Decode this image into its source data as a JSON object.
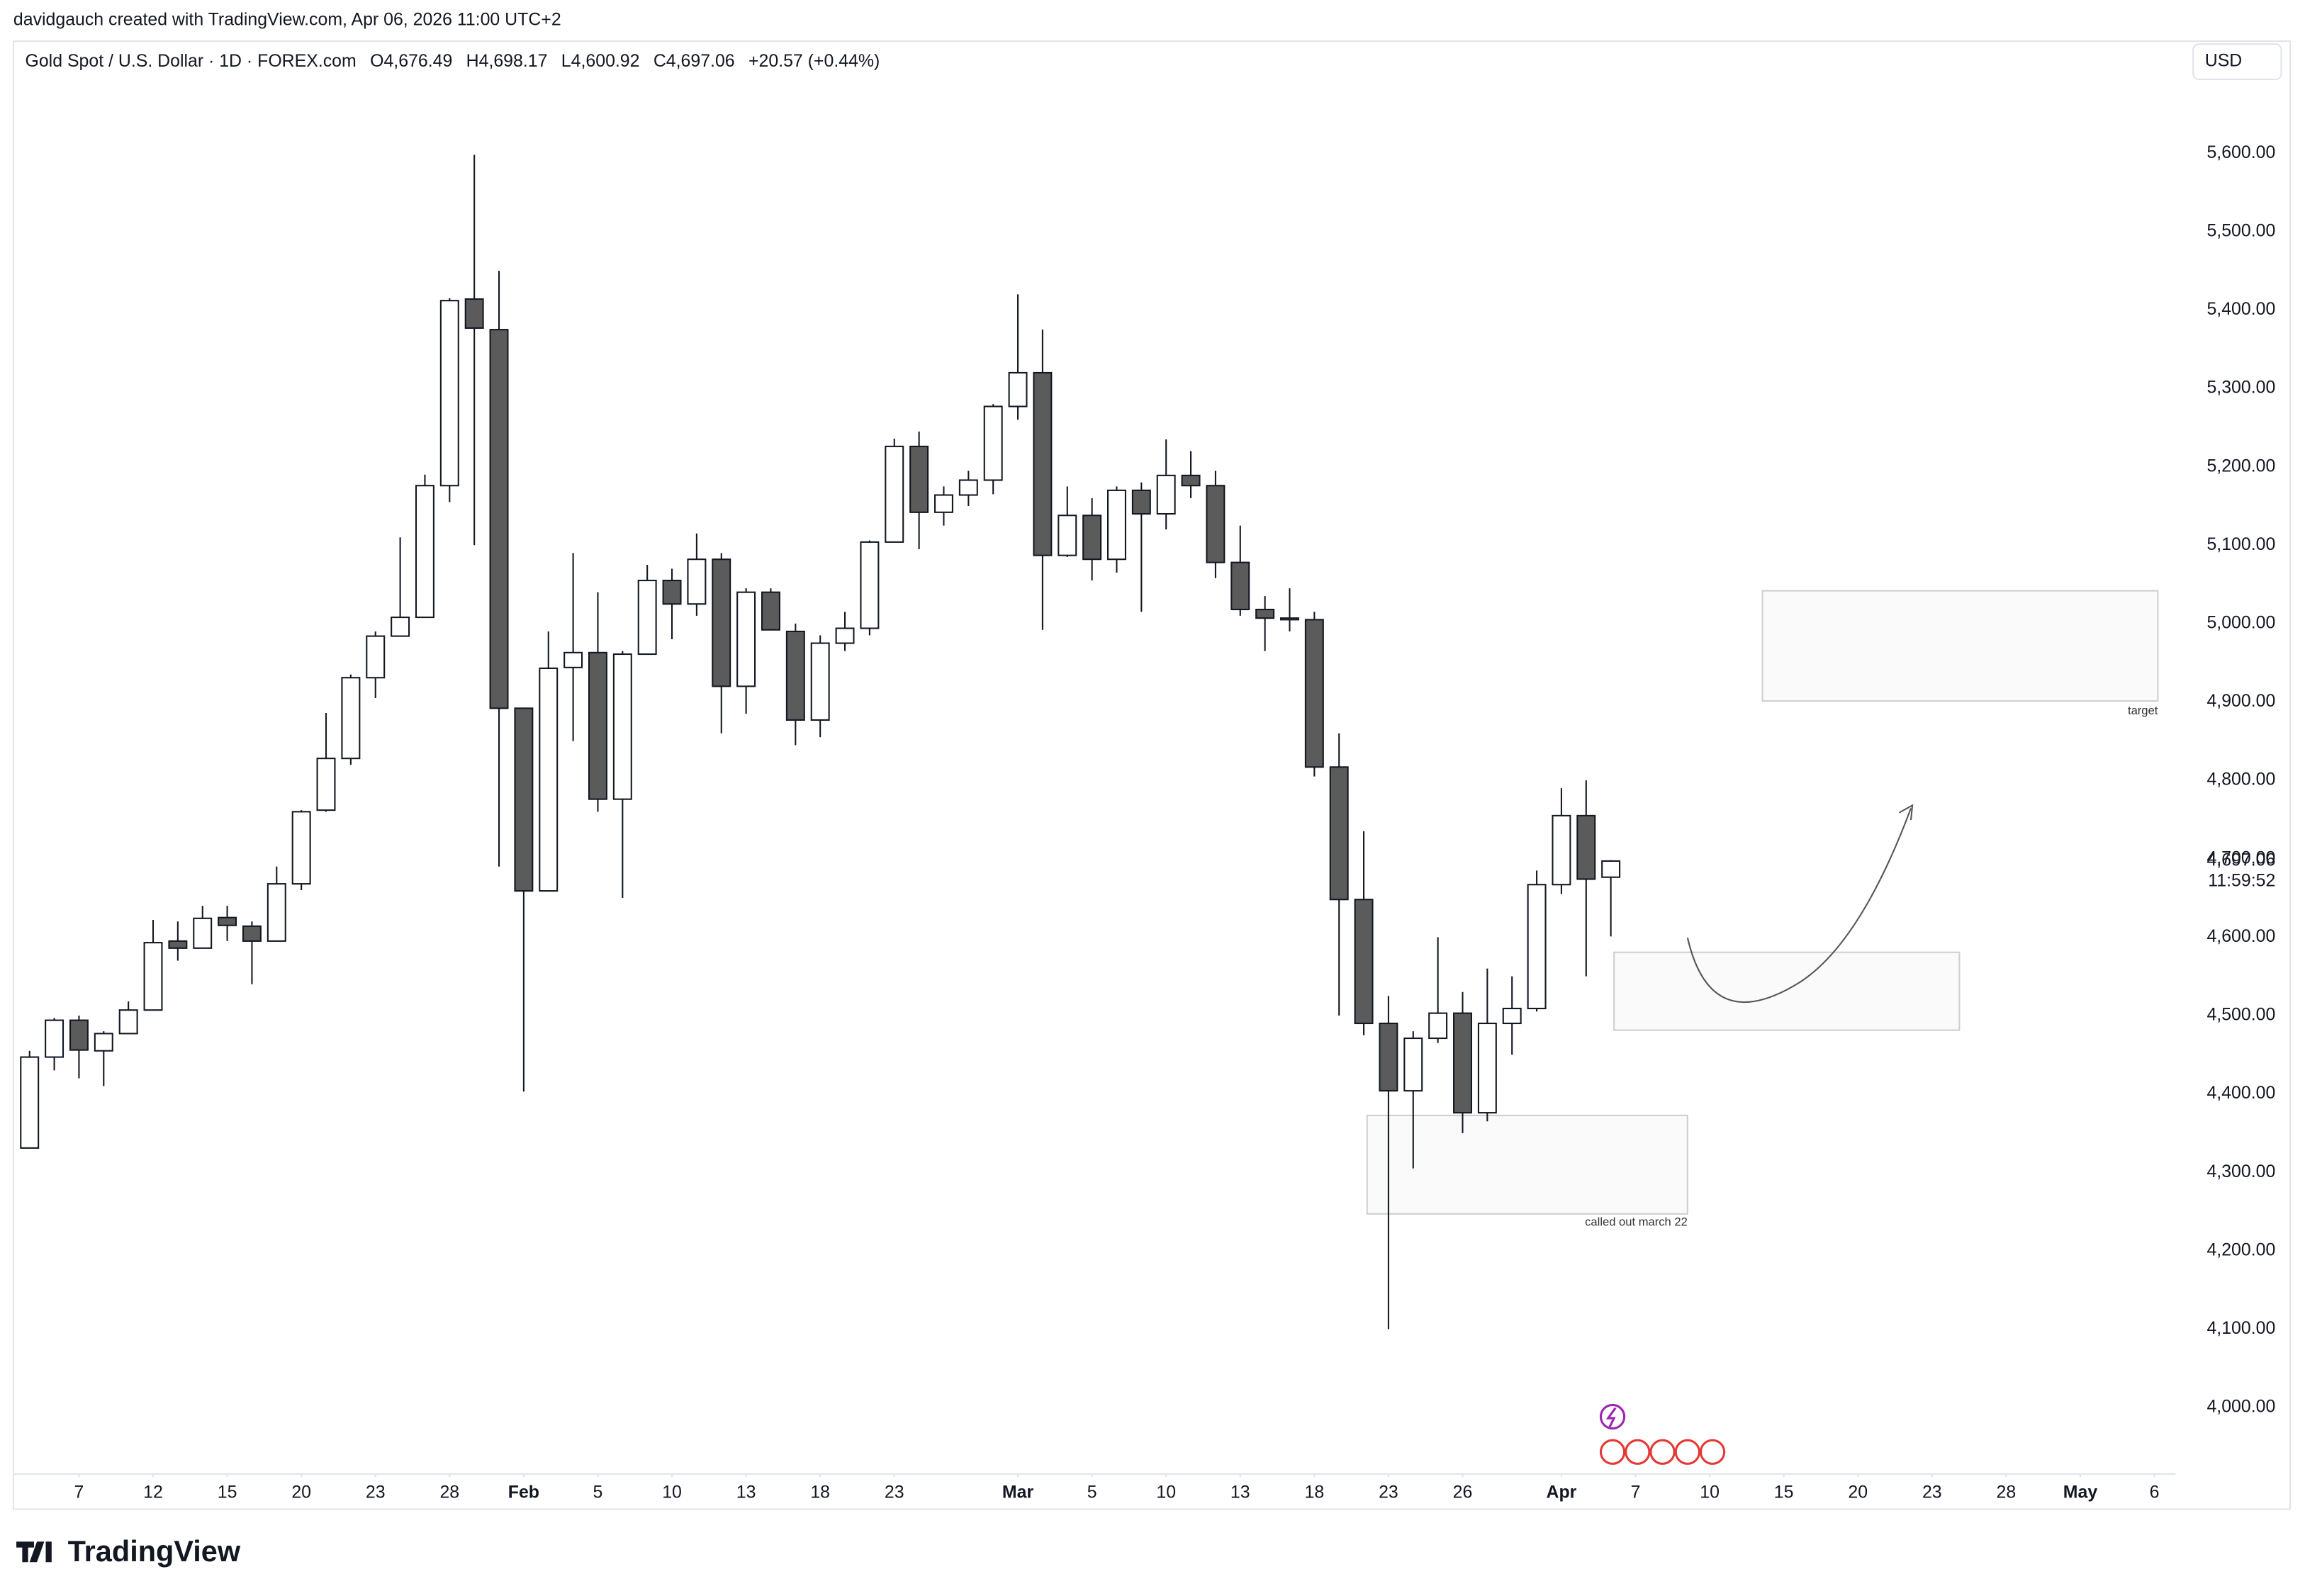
{
  "header": {
    "credit": "davidgauch created with TradingView.com, Apr 06, 2026 11:00 UTC+2",
    "symbol": "Gold Spot / U.S. Dollar · 1D · FOREX.com",
    "open_label": "O",
    "open": "4,676.49",
    "high_label": "H",
    "high": "4,698.17",
    "low_label": "L",
    "low": "4,600.92",
    "close_label": "C",
    "close": "4,697.06",
    "change": "+20.57 (+0.44%)",
    "currency": "USD"
  },
  "chart_data": {
    "type": "candlestick",
    "x": [
      "2026-01-05",
      "2026-01-06",
      "2026-01-07",
      "2026-01-08",
      "2026-01-09",
      "2026-01-12",
      "2026-01-13",
      "2026-01-14",
      "2026-01-15",
      "2026-01-16",
      "2026-01-19",
      "2026-01-20",
      "2026-01-21",
      "2026-01-22",
      "2026-01-23",
      "2026-01-26",
      "2026-01-27",
      "2026-01-28",
      "2026-01-29",
      "2026-01-30",
      "2026-02-02",
      "2026-02-03",
      "2026-02-04",
      "2026-02-05",
      "2026-02-06",
      "2026-02-09",
      "2026-02-10",
      "2026-02-11",
      "2026-02-12",
      "2026-02-13",
      "2026-02-16",
      "2026-02-17",
      "2026-02-18",
      "2026-02-19",
      "2026-02-20",
      "2026-02-23",
      "2026-02-24",
      "2026-02-25",
      "2026-02-26",
      "2026-02-27",
      "2026-03-02",
      "2026-03-03",
      "2026-03-04",
      "2026-03-05",
      "2026-03-06",
      "2026-03-09",
      "2026-03-10",
      "2026-03-11",
      "2026-03-12",
      "2026-03-13",
      "2026-03-16",
      "2026-03-17",
      "2026-03-18",
      "2026-03-19",
      "2026-03-20",
      "2026-03-23",
      "2026-03-24",
      "2026-03-25",
      "2026-03-26",
      "2026-03-27",
      "2026-03-30",
      "2026-03-31",
      "2026-04-01",
      "2026-04-02",
      "2026-04-06"
    ],
    "open": [
      4331,
      4447,
      4494,
      4455,
      4477,
      4507,
      4595,
      4586,
      4625,
      4614,
      4595,
      4668,
      4762,
      4828,
      4931,
      4984,
      5008,
      5176,
      5414,
      5375,
      4892,
      4659,
      4944,
      4963,
      4776,
      4961,
      5055,
      5025,
      5082,
      4920,
      5040,
      4990,
      4877,
      4975,
      4994,
      5104,
      5226,
      5142,
      5164,
      5183,
      5277,
      5320,
      5087,
      5138,
      5082,
      5170,
      5140,
      5189,
      5176,
      5078,
      5018,
      5005,
      5005,
      4817,
      4648,
      4490,
      4404,
      4471,
      4503,
      4376,
      4490,
      4509,
      4667,
      4755,
      4676.49
    ],
    "high": [
      4455,
      4497,
      4500,
      4480,
      4518,
      4622,
      4620,
      4640,
      4640,
      4620,
      4690,
      4762,
      4886,
      4935,
      4990,
      5110,
      5190,
      5415,
      5598,
      5450,
      4892,
      4990,
      5090,
      5040,
      4965,
      5075,
      5070,
      5115,
      5090,
      5045,
      5045,
      5000,
      4985,
      5015,
      5106,
      5236,
      5245,
      5175,
      5195,
      5280,
      5420,
      5375,
      5175,
      5160,
      5175,
      5180,
      5235,
      5220,
      5195,
      5125,
      5035,
      5045,
      5015,
      4860,
      4735,
      4525,
      4480,
      4600,
      4530,
      4560,
      4550,
      4685,
      4790,
      4800,
      4698.17
    ],
    "low": [
      4331,
      4430,
      4420,
      4410,
      4477,
      4507,
      4570,
      4586,
      4595,
      4540,
      4595,
      4660,
      4760,
      4820,
      4905,
      4984,
      5008,
      5155,
      5100,
      4690,
      4403,
      4659,
      4850,
      4760,
      4650,
      4961,
      4980,
      5010,
      4860,
      4885,
      4992,
      4845,
      4855,
      4965,
      4985,
      5104,
      5095,
      5125,
      5150,
      5165,
      5260,
      4992,
      5085,
      5055,
      5065,
      5015,
      5120,
      5160,
      5058,
      5010,
      4965,
      4990,
      4805,
      4500,
      4475,
      4100,
      4305,
      4465,
      4350,
      4365,
      4450,
      4505,
      4655,
      4550,
      4600.92
    ],
    "close": [
      4447,
      4494,
      4456,
      4477,
      4507,
      4593,
      4586,
      4624,
      4615,
      4595,
      4668,
      4760,
      4828,
      4931,
      4984,
      5008,
      5176,
      5412,
      5377,
      4892,
      4659,
      4943,
      4963,
      4776,
      4961,
      5055,
      5025,
      5082,
      4920,
      5040,
      4992,
      4877,
      4975,
      4994,
      5104,
      5226,
      5142,
      5164,
      5183,
      5277,
      5320,
      5087,
      5138,
      5082,
      5170,
      5140,
      5189,
      5176,
      5078,
      5018,
      5007,
      5007,
      4817,
      4648,
      4490,
      4404,
      4471,
      4503,
      4376,
      4490,
      4509,
      4667,
      4755,
      4674,
      4697.06
    ],
    "up_color": "#ffffff",
    "down_color": "#5b5b5b",
    "edge_color": "#131722",
    "ylim": [
      3917,
      5743
    ],
    "yticks": [
      {
        "value": 4000,
        "label": "4,000.00"
      },
      {
        "value": 4100,
        "label": "4,100.00"
      },
      {
        "value": 4200,
        "label": "4,200.00"
      },
      {
        "value": 4300,
        "label": "4,300.00"
      },
      {
        "value": 4400,
        "label": "4,400.00"
      },
      {
        "value": 4500,
        "label": "4,500.00"
      },
      {
        "value": 4600,
        "label": "4,600.00"
      },
      {
        "value": 4700,
        "label": "4,700.00"
      },
      {
        "value": 4800,
        "label": "4,800.00"
      },
      {
        "value": 4900,
        "label": "4,900.00"
      },
      {
        "value": 5000,
        "label": "5,000.00"
      },
      {
        "value": 5100,
        "label": "5,100.00"
      },
      {
        "value": 5200,
        "label": "5,200.00"
      },
      {
        "value": 5300,
        "label": "5,300.00"
      },
      {
        "value": 5400,
        "label": "5,400.00"
      },
      {
        "value": 5500,
        "label": "5,500.00"
      },
      {
        "value": 5600,
        "label": "5,600.00"
      }
    ],
    "last_price": {
      "value": 4697.06,
      "label": "4,697.06"
    },
    "countdown": "11:59:52",
    "xticks": [
      {
        "value": "2026-01-07",
        "label": "7"
      },
      {
        "value": "2026-01-12",
        "label": "12"
      },
      {
        "value": "2026-01-15",
        "label": "15"
      },
      {
        "value": "2026-01-20",
        "label": "20"
      },
      {
        "value": "2026-01-23",
        "label": "23"
      },
      {
        "value": "2026-01-28",
        "label": "28"
      },
      {
        "value": "2026-02-02",
        "label": "Feb"
      },
      {
        "value": "2026-02-05",
        "label": "5"
      },
      {
        "value": "2026-02-10",
        "label": "10"
      },
      {
        "value": "2026-02-13",
        "label": "13"
      },
      {
        "value": "2026-02-18",
        "label": "18"
      },
      {
        "value": "2026-02-23",
        "label": "23"
      },
      {
        "value": "2026-03-02",
        "label": "Mar"
      },
      {
        "value": "2026-03-05",
        "label": "5"
      },
      {
        "value": "2026-03-10",
        "label": "10"
      },
      {
        "value": "2026-03-13",
        "label": "13"
      },
      {
        "value": "2026-03-18",
        "label": "18"
      },
      {
        "value": "2026-03-23",
        "label": "23"
      },
      {
        "value": "2026-03-26",
        "label": "26"
      },
      {
        "value": "2026-04-01",
        "label": "Apr"
      },
      {
        "value": "2026-04-07",
        "label": "7"
      },
      {
        "value": "2026-04-10",
        "label": "10"
      },
      {
        "value": "2026-04-15",
        "label": "15"
      },
      {
        "value": "2026-04-20",
        "label": "20"
      },
      {
        "value": "2026-04-23",
        "label": "23"
      },
      {
        "value": "2026-04-28",
        "label": "28"
      },
      {
        "value": "2026-05-01",
        "label": "May"
      },
      {
        "value": "2026-05-06",
        "label": "6"
      }
    ],
    "annotations": [
      "target",
      "called out march 22"
    ]
  },
  "watermark": "TradingView"
}
